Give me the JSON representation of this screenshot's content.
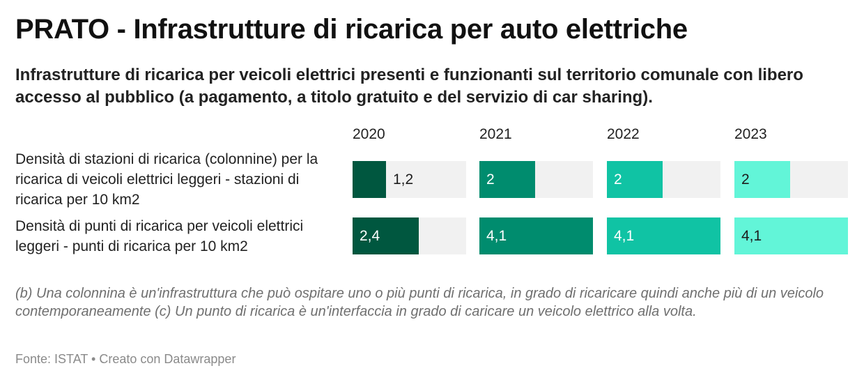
{
  "title": "PRATO - Infrastrutture di ricarica per auto elettriche",
  "subtitle": "Infrastrutture di ricarica per veicoli elettrici presenti e funzionanti sul territorio comunale con libero accesso al pubblico (a pagamento, a titolo gratuito e del servizio di car sharing).",
  "notes": "(b) Una colonnina è un'infrastruttura che può ospitare uno o più punti di ricarica, in grado di ricaricare quindi anche più di un veicolo contemporaneamente (c) Un punto di ricarica è un'interfaccia in grado di caricare un veicolo elettrico alla volta.",
  "footer": "Fonte: ISTAT • Creato con Datawrapper",
  "colors": {
    "background_track": "#f1f1f1",
    "series": [
      "#00573f",
      "#008c6e",
      "#10c3a4",
      "#62f5d8"
    ]
  },
  "chart_data": {
    "type": "bar",
    "layout": "split-bars-by-column",
    "columns": [
      "2020",
      "2021",
      "2022",
      "2023"
    ],
    "rows": [
      {
        "label": "Densità di stazioni di ricarica (colonnine) per la ricarica di veicoli elettrici leggeri - stazioni di ricarica per 10 km2",
        "values": [
          1.2,
          2,
          2,
          2
        ],
        "value_labels": [
          "1,2",
          "2",
          "2",
          "2"
        ]
      },
      {
        "label": "Densità di punti di ricarica per veicoli elettrici leggeri - punti di ricarica per 10 km2",
        "values": [
          2.4,
          4.1,
          4.1,
          4.1
        ],
        "value_labels": [
          "2,4",
          "4,1",
          "4,1",
          "4,1"
        ]
      }
    ],
    "xlim": [
      0,
      4.1
    ],
    "grid": false,
    "legend": "none"
  }
}
